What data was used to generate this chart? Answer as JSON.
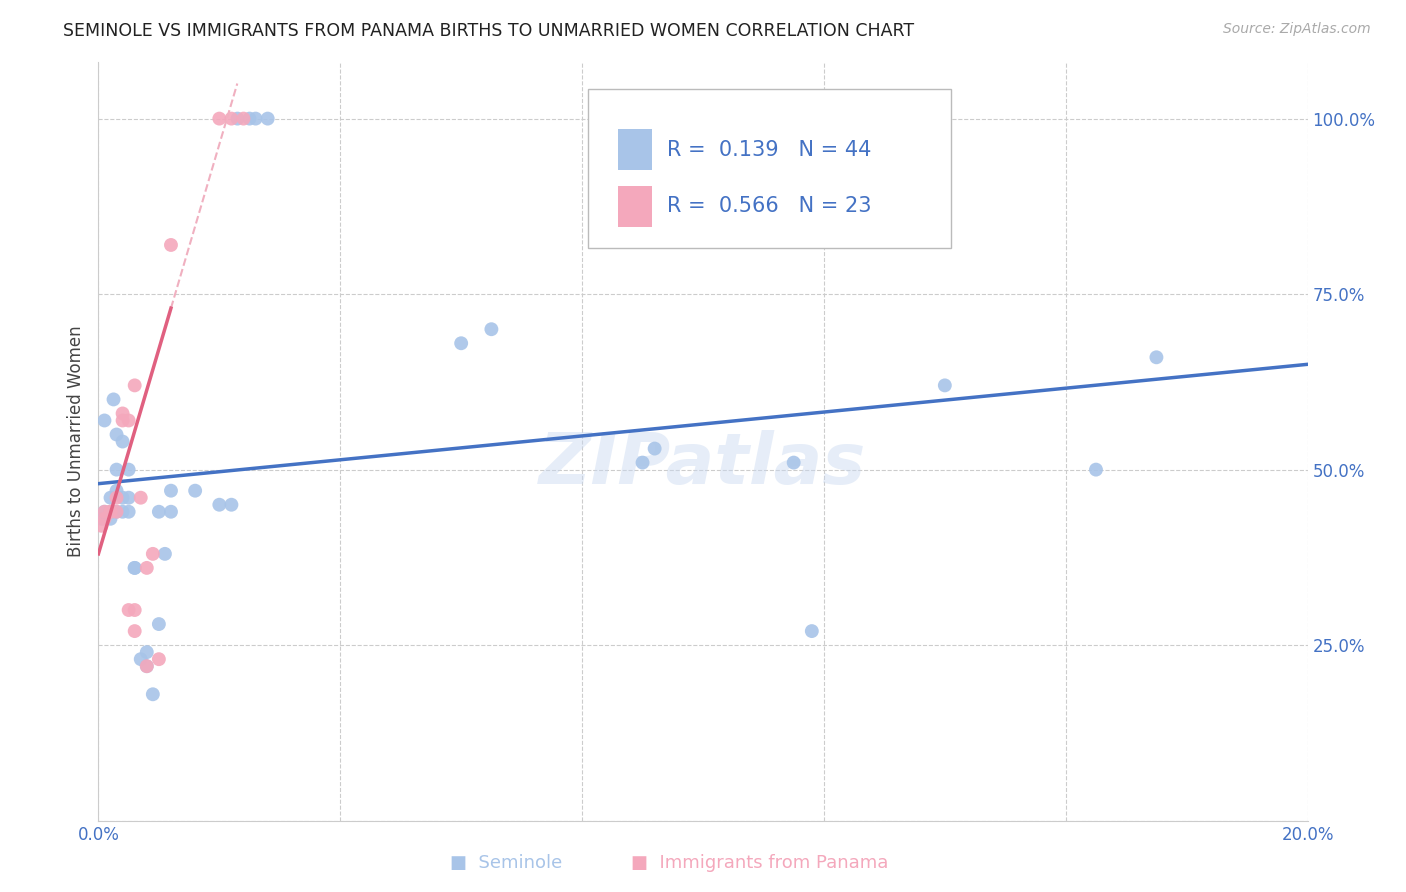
{
  "title": "SEMINOLE VS IMMIGRANTS FROM PANAMA BIRTHS TO UNMARRIED WOMEN CORRELATION CHART",
  "source": "Source: ZipAtlas.com",
  "ylabel": "Births to Unmarried Women",
  "xlim": [
    0.0,
    0.2
  ],
  "ylim": [
    0.0,
    1.08
  ],
  "seminole_color": "#a8c4e8",
  "panama_color": "#f4a8bc",
  "trendline_seminole_color": "#4472c4",
  "trendline_panama_color": "#e06080",
  "legend_text_color": "#4472c4",
  "watermark": "ZIPatlas",
  "legend_R1": "0.139",
  "legend_N1": "44",
  "legend_R2": "0.566",
  "legend_N2": "23",
  "seminole_x": [
    0.0005,
    0.001,
    0.001,
    0.002,
    0.002,
    0.002,
    0.0025,
    0.003,
    0.003,
    0.003,
    0.003,
    0.004,
    0.004,
    0.004,
    0.005,
    0.005,
    0.005,
    0.006,
    0.006,
    0.007,
    0.008,
    0.008,
    0.009,
    0.01,
    0.01,
    0.011,
    0.012,
    0.012,
    0.016,
    0.02,
    0.022,
    0.06,
    0.065,
    0.09,
    0.092,
    0.115,
    0.118,
    0.14,
    0.165,
    0.175,
    0.023,
    0.025,
    0.026,
    0.028
  ],
  "seminole_y": [
    0.43,
    0.44,
    0.57,
    0.43,
    0.44,
    0.46,
    0.6,
    0.44,
    0.47,
    0.5,
    0.55,
    0.44,
    0.46,
    0.54,
    0.44,
    0.46,
    0.5,
    0.36,
    0.36,
    0.23,
    0.22,
    0.24,
    0.18,
    0.28,
    0.44,
    0.38,
    0.44,
    0.47,
    0.47,
    0.45,
    0.45,
    0.68,
    0.7,
    0.51,
    0.53,
    0.51,
    0.27,
    0.62,
    0.5,
    0.66,
    1.0,
    1.0,
    1.0,
    1.0
  ],
  "panama_x": [
    0.0005,
    0.001,
    0.001,
    0.002,
    0.002,
    0.003,
    0.003,
    0.004,
    0.004,
    0.005,
    0.005,
    0.006,
    0.006,
    0.006,
    0.007,
    0.008,
    0.008,
    0.009,
    0.01,
    0.012,
    0.02,
    0.022,
    0.024
  ],
  "panama_y": [
    0.42,
    0.43,
    0.44,
    0.44,
    0.44,
    0.44,
    0.46,
    0.57,
    0.58,
    0.3,
    0.57,
    0.27,
    0.3,
    0.62,
    0.46,
    0.22,
    0.36,
    0.38,
    0.23,
    0.82,
    1.0,
    1.0,
    1.0
  ]
}
